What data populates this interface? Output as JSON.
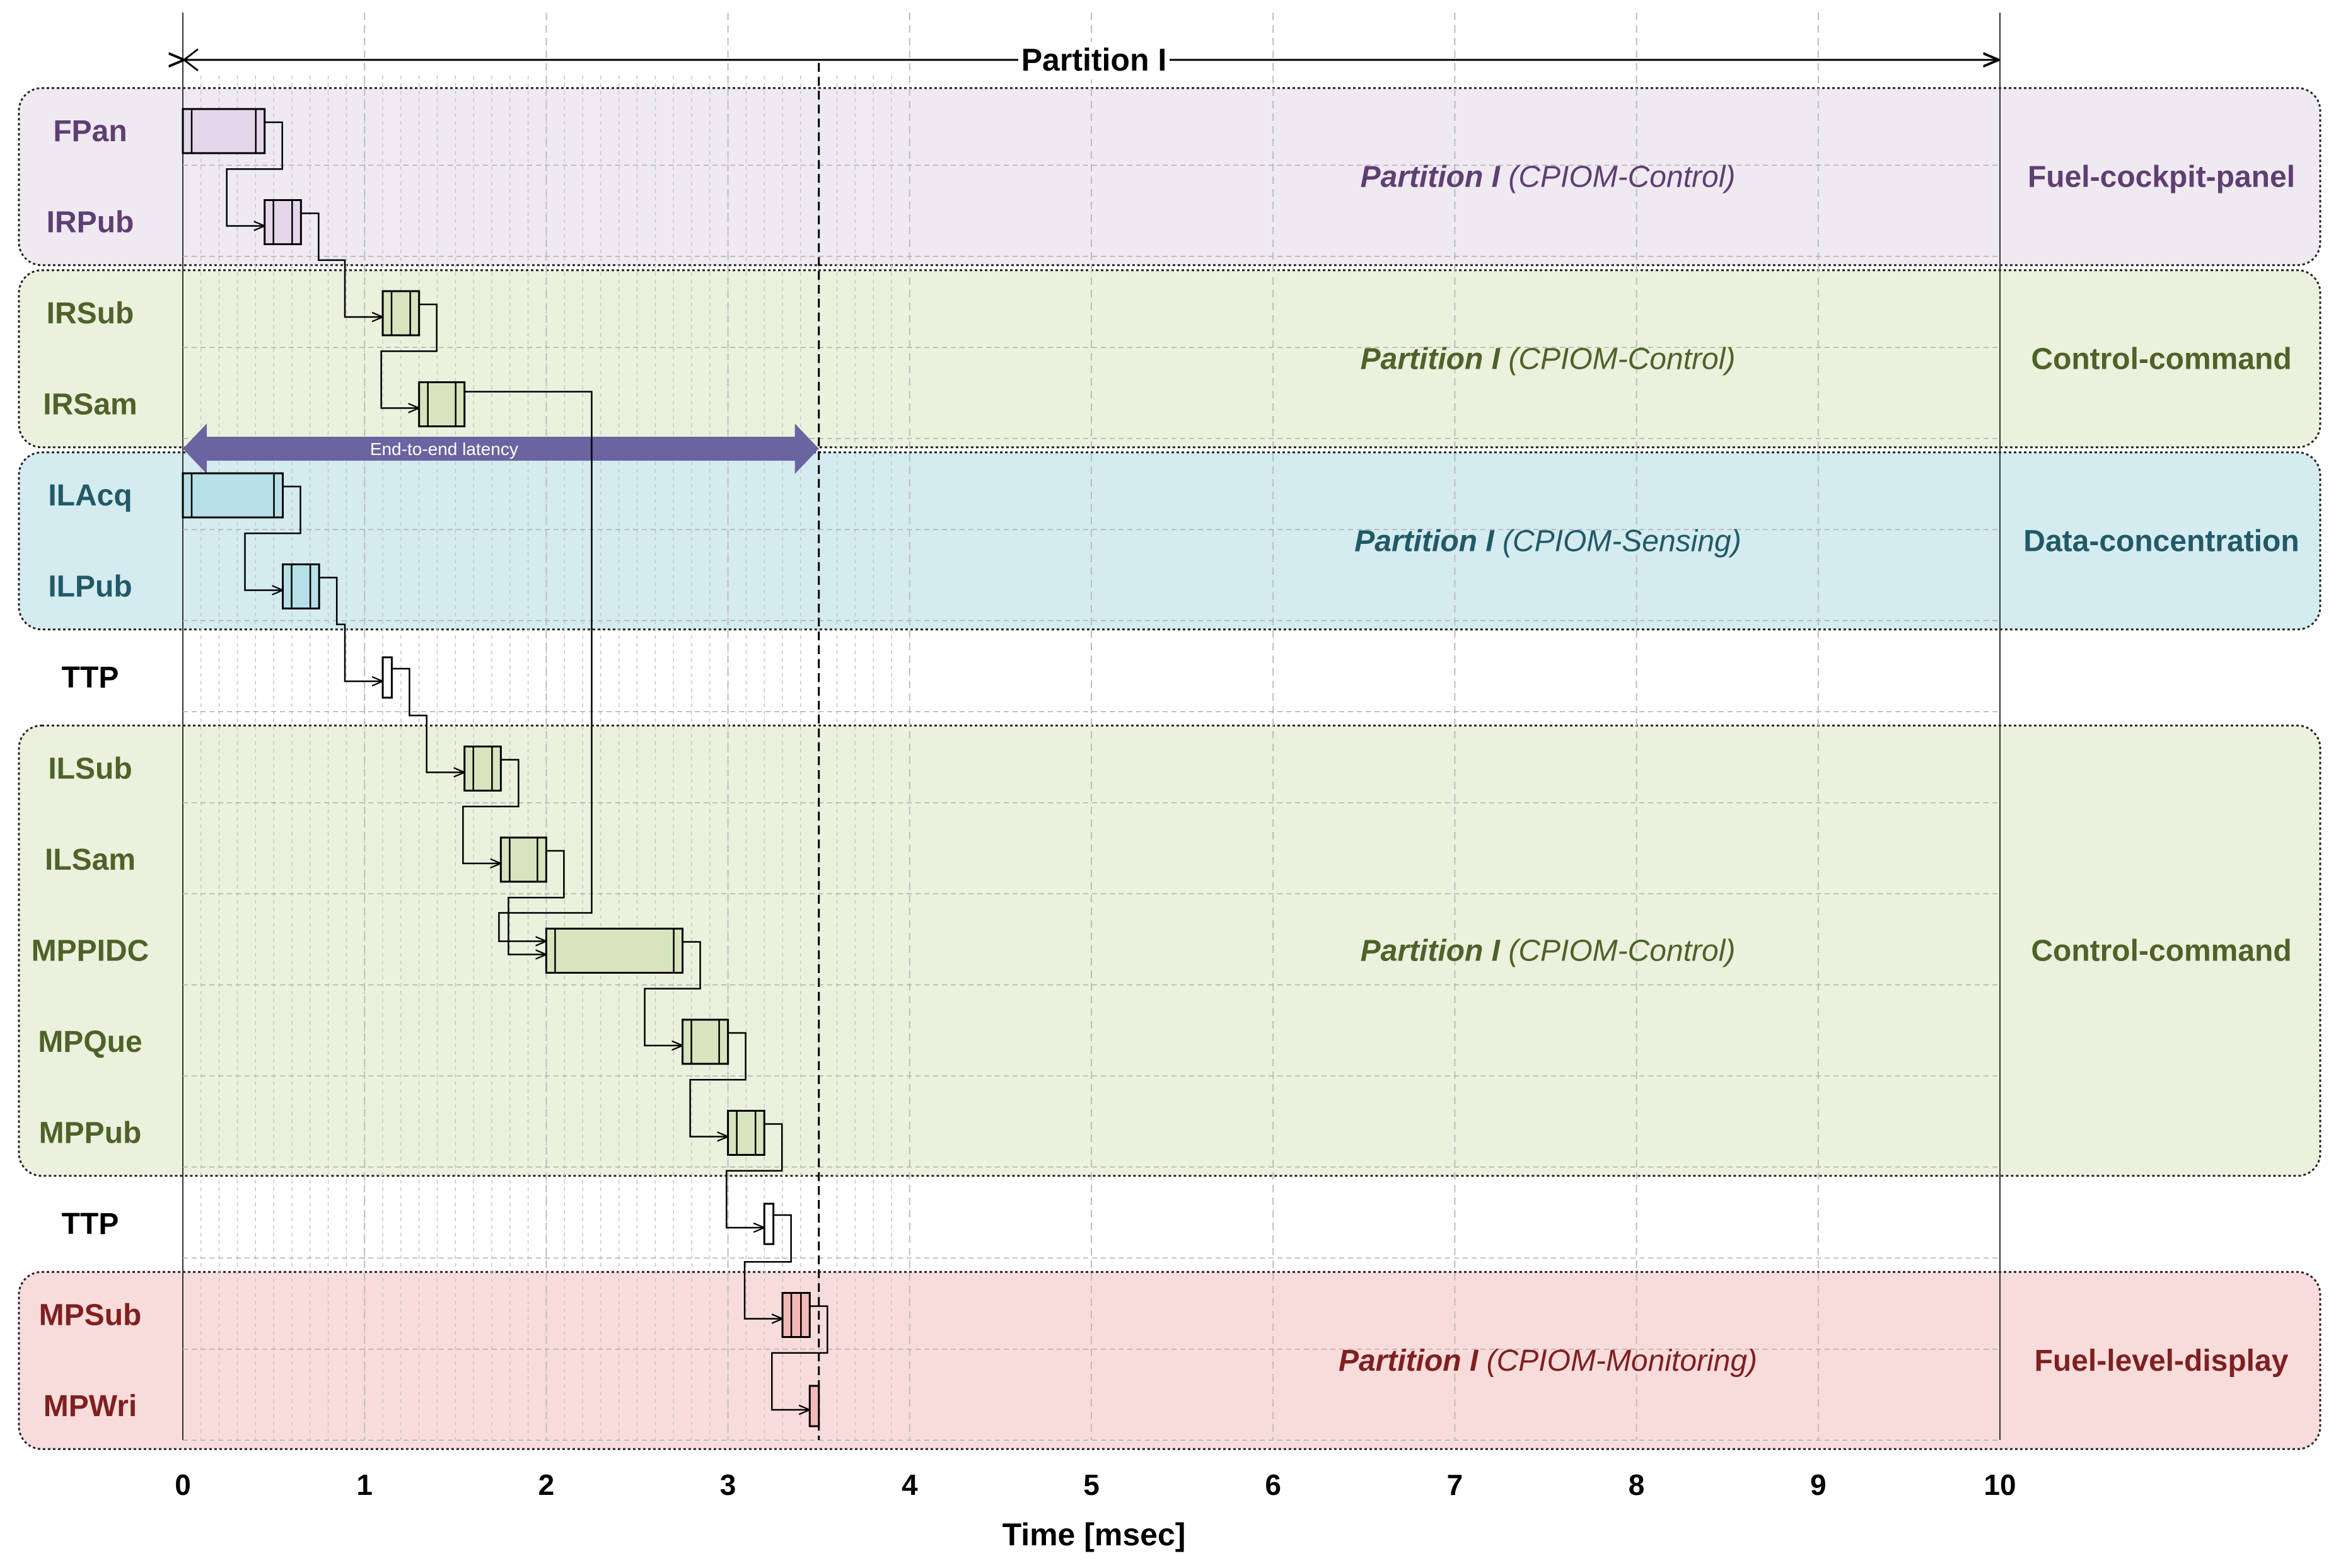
{
  "chart_data": {
    "type": "timeline",
    "title": "Partition I",
    "xlabel": "Time [msec]",
    "xlim": [
      0,
      10
    ],
    "xticks": [
      0,
      1,
      2,
      3,
      4,
      5,
      6,
      7,
      8,
      9,
      10
    ],
    "latency_label": "End-to-end latency",
    "latency_ms": [
      0,
      3.5
    ],
    "deadline_ms": 3.5,
    "rows": [
      "FPan",
      "IRPub",
      "IRSub",
      "IRSam",
      "ILAcq",
      "ILPub",
      "TTP",
      "ILSub",
      "ILSam",
      "MPPIDC",
      "MPQue",
      "MPPub",
      "TTP",
      "MPSub",
      "MPWri"
    ],
    "groups": [
      {
        "name": "Fuel-cockpit-panel",
        "partition": "Partition I",
        "module": "(CPIOM-Control)",
        "rows": [
          0,
          1
        ],
        "fill": "#efe9f2",
        "color": "#5f3f73"
      },
      {
        "name": "Control-command",
        "partition": "Partition I",
        "module": "(CPIOM-Control)",
        "rows": [
          2,
          3
        ],
        "fill": "#ebf1dd",
        "color": "#4f6228"
      },
      {
        "name": "Data-concentration",
        "partition": "Partition I",
        "module": "(CPIOM-Sensing)",
        "rows": [
          4,
          5
        ],
        "fill": "#d4ebf0",
        "color": "#215967"
      },
      {
        "name": "Control-command",
        "partition": "Partition I",
        "module": "(CPIOM-Control)",
        "rows": [
          7,
          8,
          9,
          10,
          11
        ],
        "fill": "#ebf1dd",
        "color": "#4f6228"
      },
      {
        "name": "Fuel-level-display",
        "partition": "Partition I",
        "module": "(CPIOM-Monitoring)",
        "rows": [
          13,
          14
        ],
        "fill": "#f8dcdb",
        "color": "#7f2020"
      }
    ],
    "tasks": [
      {
        "row": 0,
        "start": 0.0,
        "end": 0.45,
        "color": "#e4d7ea"
      },
      {
        "row": 1,
        "start": 0.45,
        "end": 0.65,
        "color": "#e4d7ea"
      },
      {
        "row": 2,
        "start": 1.1,
        "end": 1.3,
        "color": "#d7e4bd"
      },
      {
        "row": 3,
        "start": 1.3,
        "end": 1.55,
        "color": "#d7e4bd"
      },
      {
        "row": 4,
        "start": 0.0,
        "end": 0.55,
        "color": "#b7e0e8"
      },
      {
        "row": 5,
        "start": 0.55,
        "end": 0.75,
        "color": "#b7e0e8"
      },
      {
        "row": 6,
        "start": 1.1,
        "end": 1.15,
        "color": "#ffffff"
      },
      {
        "row": 7,
        "start": 1.55,
        "end": 1.75,
        "color": "#d7e4bd"
      },
      {
        "row": 8,
        "start": 1.75,
        "end": 2.0,
        "color": "#d7e4bd"
      },
      {
        "row": 9,
        "start": 2.0,
        "end": 2.75,
        "color": "#d7e4bd"
      },
      {
        "row": 10,
        "start": 2.75,
        "end": 3.0,
        "color": "#d7e4bd"
      },
      {
        "row": 11,
        "start": 3.0,
        "end": 3.2,
        "color": "#d7e4bd"
      },
      {
        "row": 12,
        "start": 3.2,
        "end": 3.25,
        "color": "#ffffff"
      },
      {
        "row": 13,
        "start": 3.3,
        "end": 3.45,
        "color": "#f2b9b7"
      },
      {
        "row": 14,
        "start": 3.45,
        "end": 3.5,
        "color": "#f2b9b7"
      }
    ],
    "row_colors": [
      "#5f3f73",
      "#5f3f73",
      "#4f6228",
      "#4f6228",
      "#215967",
      "#215967",
      "#000000",
      "#4f6228",
      "#4f6228",
      "#4f6228",
      "#4f6228",
      "#4f6228",
      "#000000",
      "#7f2020",
      "#7f2020"
    ],
    "latency_color": "#6a64a0"
  }
}
